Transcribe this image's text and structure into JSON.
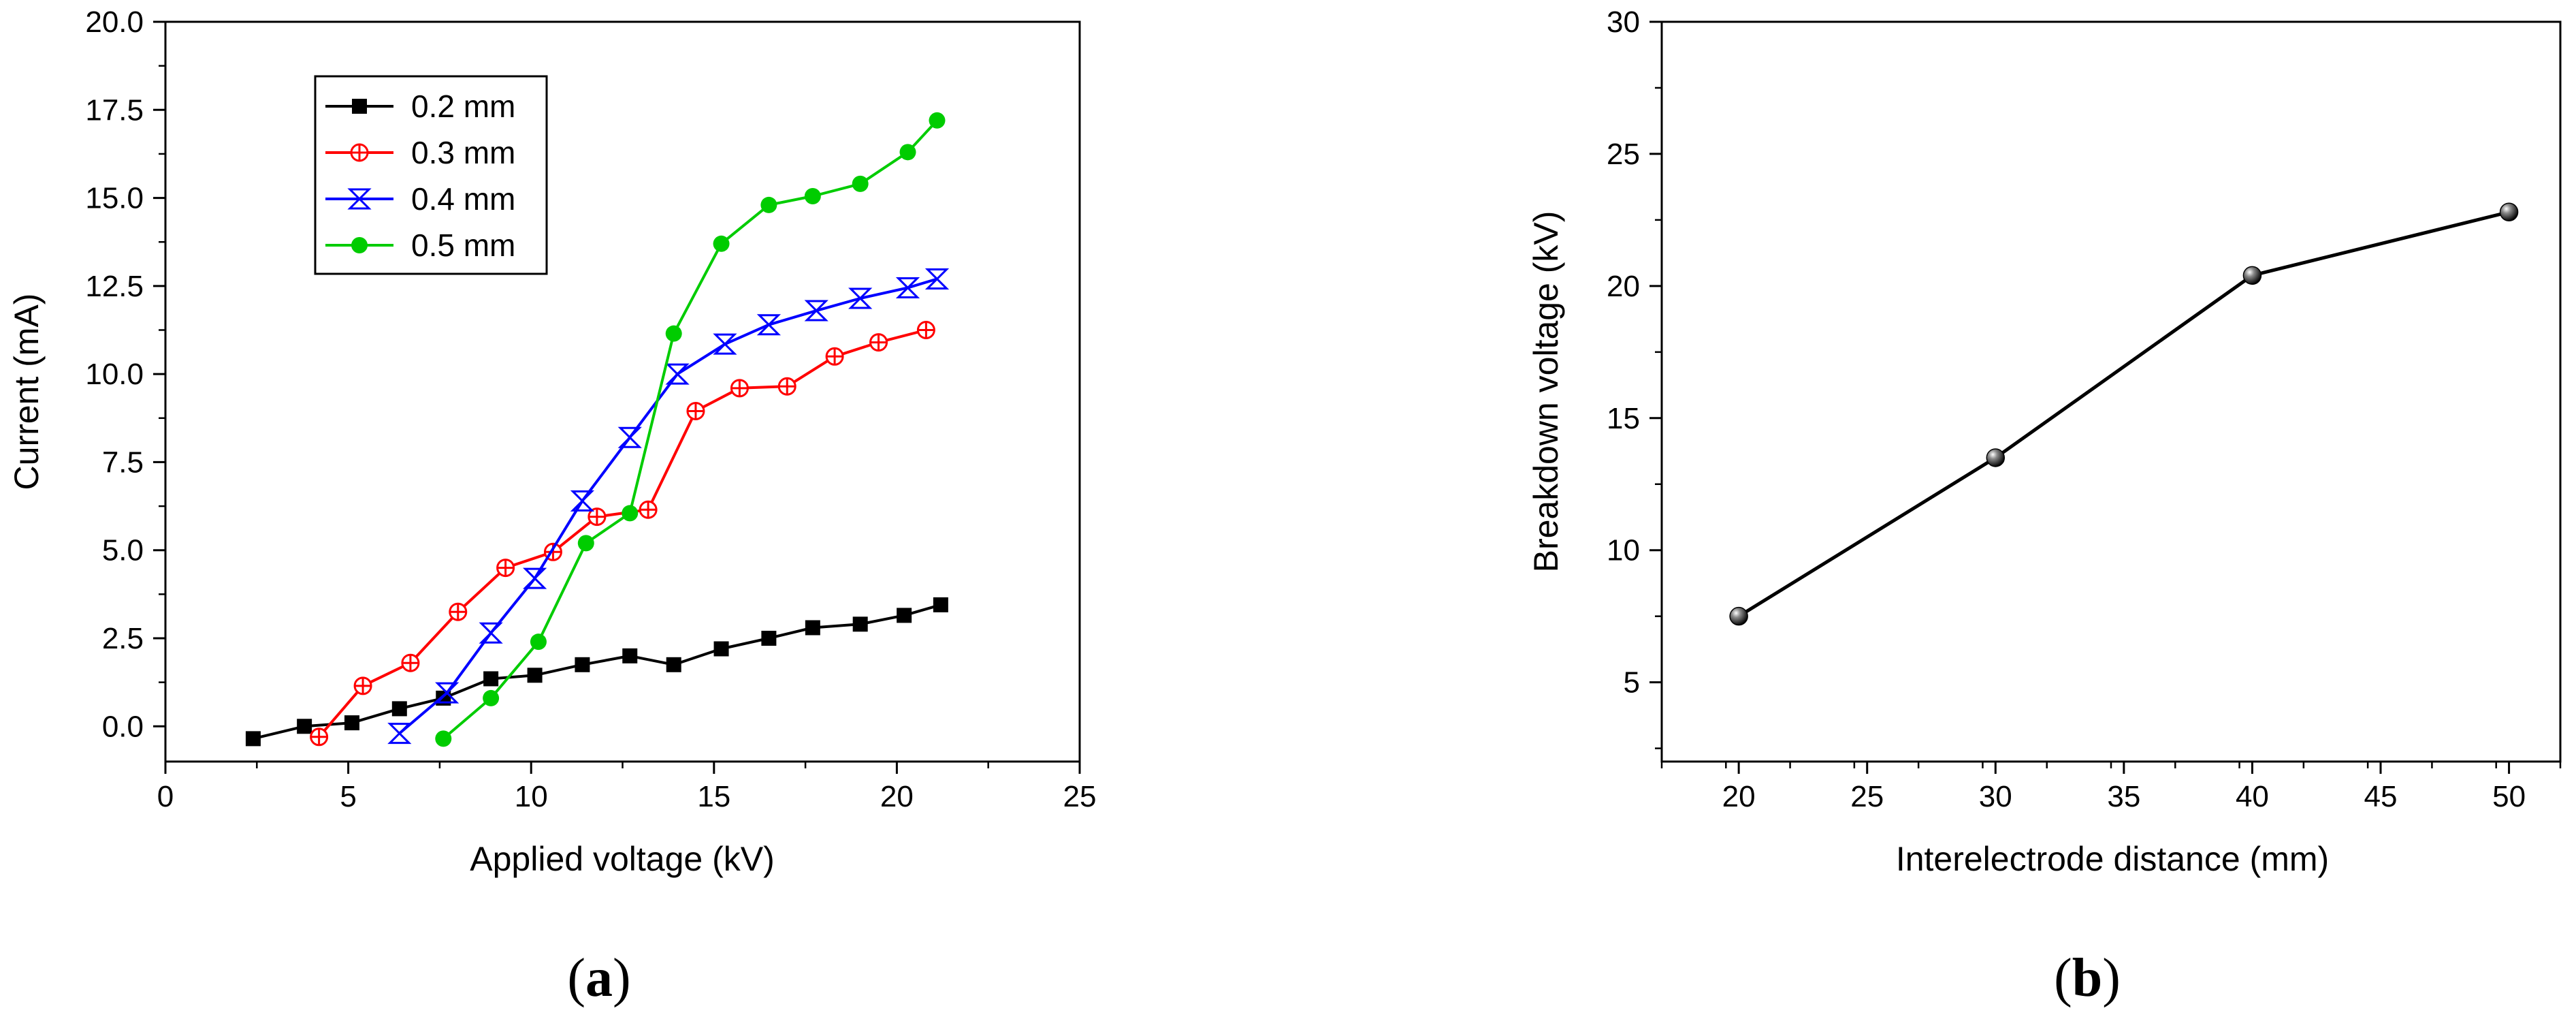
{
  "chart_data": [
    {
      "type": "line",
      "panel_label": "a",
      "title": "",
      "xlabel": "Applied voltage (kV)",
      "ylabel": "Current (mA)",
      "xlim": [
        0,
        25
      ],
      "ylim": [
        -1,
        20
      ],
      "xticks": [
        0,
        5,
        10,
        15,
        20,
        25
      ],
      "yticks": [
        0.0,
        2.5,
        5.0,
        7.5,
        10.0,
        12.5,
        15.0,
        17.5,
        20.0
      ],
      "xtick_labels": [
        "0",
        "5",
        "10",
        "15",
        "20",
        "25"
      ],
      "ytick_labels": [
        "0.0",
        "2.5",
        "5.0",
        "7.5",
        "10.0",
        "12.5",
        "15.0",
        "17.5",
        "20.0"
      ],
      "grid": false,
      "legend_position": "top-left",
      "series": [
        {
          "name": "0.2 mm",
          "color": "#000000",
          "marker": "filled-square",
          "x": [
            2.4,
            3.8,
            5.1,
            6.4,
            7.6,
            8.9,
            10.1,
            11.4,
            12.7,
            13.9,
            15.2,
            16.5,
            17.7,
            19.0,
            20.2,
            21.2
          ],
          "y": [
            -0.35,
            0.0,
            0.1,
            0.5,
            0.8,
            1.35,
            1.45,
            1.75,
            2.0,
            1.75,
            2.2,
            2.5,
            2.8,
            2.9,
            3.15,
            3.45
          ]
        },
        {
          "name": "0.3 mm",
          "color": "#ff0000",
          "marker": "open-circle-plus",
          "x": [
            4.2,
            5.4,
            6.7,
            8.0,
            9.3,
            10.6,
            11.8,
            13.2,
            14.5,
            15.7,
            17.0,
            18.3,
            19.5,
            20.8
          ],
          "y": [
            -0.3,
            1.15,
            1.8,
            3.25,
            4.5,
            4.95,
            5.95,
            6.15,
            8.95,
            9.6,
            9.65,
            10.5,
            10.9,
            11.25
          ]
        },
        {
          "name": "0.4 mm",
          "color": "#0000ff",
          "marker": "hourglass-x",
          "x": [
            6.4,
            7.7,
            8.9,
            10.1,
            11.4,
            12.7,
            14.0,
            15.3,
            16.5,
            17.8,
            19.0,
            20.3,
            21.1
          ],
          "y": [
            -0.2,
            0.95,
            2.65,
            4.2,
            6.4,
            8.2,
            10.0,
            10.85,
            11.4,
            11.8,
            12.15,
            12.45,
            12.7
          ]
        },
        {
          "name": "0.5 mm",
          "color": "#00cc00",
          "marker": "filled-circle",
          "x": [
            7.6,
            8.9,
            10.2,
            11.5,
            12.7,
            13.9,
            15.2,
            16.5,
            17.7,
            19.0,
            20.3,
            21.1
          ],
          "y": [
            -0.35,
            0.8,
            2.4,
            5.2,
            6.05,
            11.15,
            13.7,
            14.8,
            15.05,
            15.4,
            16.3,
            17.2
          ]
        }
      ]
    },
    {
      "type": "line",
      "panel_label": "b",
      "title": "",
      "xlabel": "Interelectrode distance (mm)",
      "ylabel": "Breakdown voltage (kV)",
      "xlim": [
        17,
        52
      ],
      "ylim": [
        2,
        30
      ],
      "xticks": [
        20,
        25,
        30,
        35,
        40,
        45,
        50
      ],
      "yticks": [
        5,
        10,
        15,
        20,
        25,
        30
      ],
      "xtick_labels": [
        "20",
        "25",
        "30",
        "35",
        "40",
        "45",
        "50"
      ],
      "ytick_labels": [
        "5",
        "10",
        "15",
        "20",
        "25",
        "30"
      ],
      "grid": false,
      "series": [
        {
          "name": "Breakdown voltage",
          "color": "#000000",
          "marker": "sphere",
          "x": [
            20,
            30,
            40,
            50
          ],
          "y": [
            7.5,
            13.5,
            20.4,
            22.8
          ]
        }
      ]
    }
  ]
}
